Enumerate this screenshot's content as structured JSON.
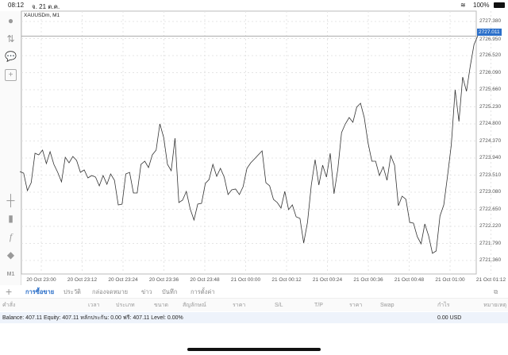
{
  "status": {
    "time": "08:12",
    "date": "จ. 21 ต.ค.",
    "battery": "100%"
  },
  "chart": {
    "symbol": "XAUUSDm, M1",
    "current_price": "2727.011",
    "current_price_value": 2727.011,
    "y_ticks": [
      "2727.380",
      "2726.950",
      "2726.520",
      "2726.090",
      "2725.660",
      "2725.230",
      "2724.800",
      "2724.370",
      "2723.940",
      "2723.510",
      "2723.080",
      "2722.650",
      "2722.220",
      "2721.790",
      "2721.360"
    ],
    "x_ticks": [
      "20 Oct 23:00",
      "20 Oct 23:12",
      "20 Oct 23:24",
      "20 Oct 23:36",
      "20 Oct 23:48",
      "21 Oct 00:00",
      "21 Oct 00:12",
      "21 Oct 00:24",
      "21 Oct 00:36",
      "21 Oct 00:48",
      "21 Oct 01:00",
      "21 Oct 01:12"
    ],
    "ylim": [
      2721.36,
      2727.38
    ],
    "prices": [
      2723.6,
      2723.56,
      2723.12,
      2723.32,
      2724.06,
      2724.02,
      2724.14,
      2723.8,
      2724.1,
      2723.78,
      2723.58,
      2723.34,
      2723.96,
      2723.82,
      2723.98,
      2723.88,
      2723.58,
      2723.64,
      2723.44,
      2723.5,
      2723.46,
      2723.24,
      2723.5,
      2723.28,
      2723.54,
      2723.38,
      2722.76,
      2722.78,
      2723.54,
      2723.58,
      2723.06,
      2723.06,
      2723.78,
      2723.86,
      2723.7,
      2724.02,
      2724.14,
      2724.8,
      2724.46,
      2723.78,
      2723.62,
      2724.44,
      2722.82,
      2722.88,
      2723.1,
      2722.66,
      2722.38,
      2722.78,
      2722.8,
      2723.3,
      2723.4,
      2723.78,
      2723.48,
      2723.68,
      2723.46,
      2723.02,
      2723.14,
      2723.16,
      2723.02,
      2723.22,
      2723.68,
      2723.82,
      2723.92,
      2724.02,
      2724.12,
      2723.32,
      2723.24,
      2722.9,
      2722.82,
      2722.68,
      2723.1,
      2722.64,
      2722.76,
      2722.46,
      2722.42,
      2721.8,
      2722.32,
      2723.26,
      2723.9,
      2723.26,
      2723.76,
      2723.46,
      2724.06,
      2723.04,
      2723.66,
      2724.58,
      2724.8,
      2724.96,
      2724.84,
      2725.22,
      2725.32,
      2724.96,
      2724.32,
      2723.86,
      2723.86,
      2723.5,
      2723.72,
      2723.38,
      2724.0,
      2723.76,
      2722.74,
      2722.98,
      2722.9,
      2722.32,
      2722.3,
      2721.96,
      2721.78,
      2722.28,
      2721.98,
      2721.54,
      2721.6,
      2722.48,
      2722.76,
      2723.5,
      2724.28,
      2725.66,
      2724.86,
      2725.98,
      2725.62,
      2726.26,
      2726.8,
      2727.02
    ],
    "colors": {
      "line": "#333333",
      "price_label": "#2b6fc9",
      "grid": "#e4e4e4"
    }
  },
  "sidebar": {
    "timeframe": "M1"
  },
  "tabs": [
    "การซื้อขาย",
    "ประวัติ",
    "กล่องจดหมาย",
    "ข่าว",
    "บันทึก",
    "การตั้งค่า"
  ],
  "columns": [
    "คำสั่ง",
    "เวลา",
    "ประเภท",
    "ขนาด",
    "สัญลักษณ์",
    "ราคา",
    "S/L",
    "T/P",
    "ราคา",
    "Swap",
    "กำไร",
    "หมายเหตุ"
  ],
  "balance": {
    "summary": "Balance: 407.11 Equity: 407.11 หลักประกัน: 0.00 ฟรี: 407.11 Level: 0.00%",
    "profit": "0.00  USD"
  }
}
